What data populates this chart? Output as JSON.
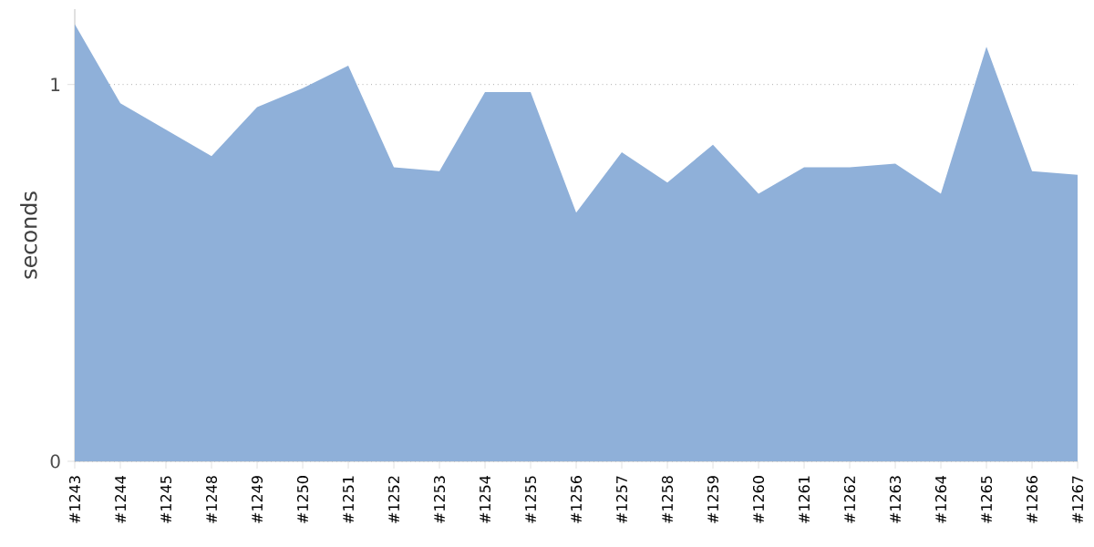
{
  "chart_data": {
    "type": "area",
    "ylabel": "seconds",
    "categories": [
      "#1243",
      "#1244",
      "#1245",
      "#1248",
      "#1249",
      "#1250",
      "#1251",
      "#1252",
      "#1253",
      "#1254",
      "#1255",
      "#1256",
      "#1257",
      "#1258",
      "#1259",
      "#1260",
      "#1261",
      "#1262",
      "#1263",
      "#1264",
      "#1265",
      "#1266",
      "#1267"
    ],
    "values": [
      1.16,
      0.95,
      0.88,
      0.81,
      0.94,
      0.99,
      1.05,
      0.78,
      0.77,
      0.98,
      0.98,
      0.66,
      0.82,
      0.74,
      0.84,
      0.71,
      0.78,
      0.78,
      0.79,
      0.71,
      1.1,
      0.77,
      0.76
    ],
    "color": "#8fb0d9",
    "ylim": [
      0,
      1.2
    ],
    "yticks": [
      0,
      1
    ],
    "grid": "y"
  }
}
